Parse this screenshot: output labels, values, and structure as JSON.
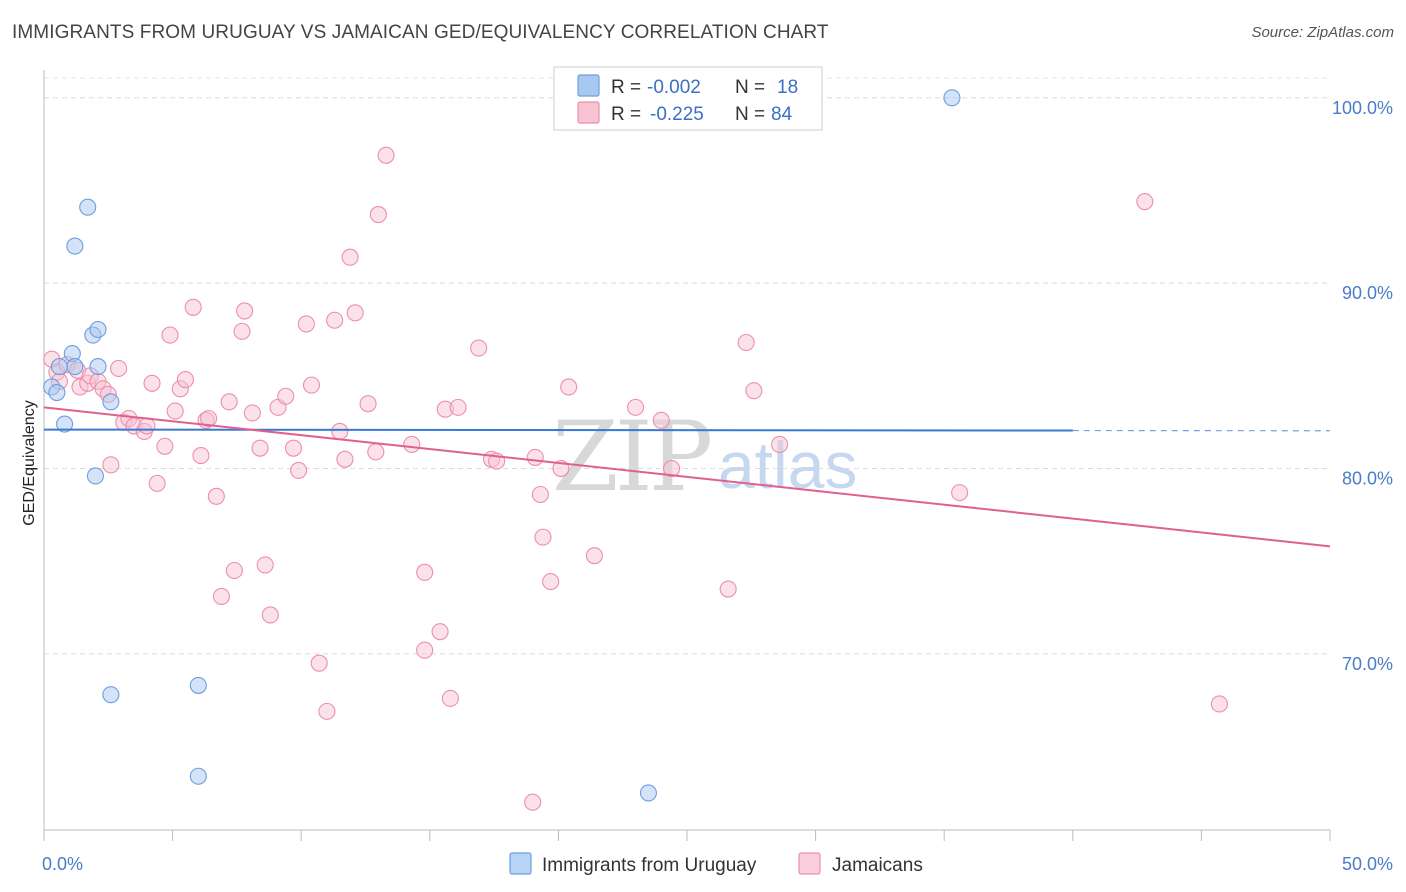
{
  "title": "IMMIGRANTS FROM URUGUAY VS JAMAICAN GED/EQUIVALENCY CORRELATION CHART",
  "source": "Source: ZipAtlas.com",
  "watermark": {
    "zip": "ZIP",
    "atlas": "atlas"
  },
  "legend": {
    "r_label": "R =",
    "n_label": "N =",
    "rows": [
      {
        "r": "-0.002",
        "n": "18",
        "color": "#a9c8ef",
        "stroke": "#6d9ee0"
      },
      {
        "r": "-0.225",
        "n": "84",
        "color": "#f8c3d2",
        "stroke": "#ec8fae"
      }
    ]
  },
  "bottom_legend": [
    {
      "label": "Immigrants from Uruguay",
      "color": "#b7d3f5",
      "stroke": "#6d9ee0"
    },
    {
      "label": "Jamaicans",
      "color": "#f9cdd9",
      "stroke": "#ec8fae"
    }
  ],
  "chart_data": {
    "type": "scatter",
    "title": "IMMIGRANTS FROM URUGUAY VS JAMAICAN GED/EQUIVALENCY CORRELATION CHART",
    "xlabel": "",
    "ylabel": "GED/Equivalency",
    "xlim": [
      0,
      50
    ],
    "ylim": [
      60.5,
      101.5
    ],
    "x_tick_labels": [
      {
        "value": 0,
        "label": "0.0%"
      },
      {
        "value": 50,
        "label": "50.0%"
      }
    ],
    "y_tick_labels": [
      {
        "value": 100,
        "label": "100.0%"
      },
      {
        "value": 90,
        "label": "90.0%"
      },
      {
        "value": 80,
        "label": "80.0%"
      },
      {
        "value": 70,
        "label": "70.0%"
      }
    ],
    "x_minor_ticks": [
      0,
      5,
      10,
      15,
      20,
      25,
      30,
      35,
      40,
      45,
      50
    ],
    "series": [
      {
        "name": "Immigrants from Uruguay",
        "color": "#a9c8ef",
        "stroke": "#6d9ee0",
        "trend": {
          "x": [
            0,
            40
          ],
          "y": [
            82.1,
            82.05
          ],
          "dash_to": 50,
          "color": "#3a78d2"
        },
        "points": [
          [
            0.3,
            84.4
          ],
          [
            0.5,
            84.1
          ],
          [
            0.8,
            82.4
          ],
          [
            1.1,
            86.2
          ],
          [
            1.2,
            85.5
          ],
          [
            1.2,
            92.0
          ],
          [
            1.7,
            94.1
          ],
          [
            1.9,
            87.2
          ],
          [
            2.1,
            85.5
          ],
          [
            2.0,
            79.6
          ],
          [
            2.1,
            87.5
          ],
          [
            2.6,
            83.6
          ],
          [
            2.6,
            67.8
          ],
          [
            6.0,
            68.3
          ],
          [
            6.0,
            63.4
          ],
          [
            35.3,
            100.0
          ],
          [
            23.5,
            62.5
          ],
          [
            0.6,
            85.5
          ]
        ]
      },
      {
        "name": "Jamaicans",
        "color": "#f8c3d2",
        "stroke": "#ec8fae",
        "trend": {
          "x": [
            0,
            50
          ],
          "y": [
            83.3,
            75.8
          ],
          "color": "#e0608e"
        },
        "points": [
          [
            0.3,
            85.9
          ],
          [
            0.5,
            85.2
          ],
          [
            0.6,
            84.7
          ],
          [
            0.9,
            85.6
          ],
          [
            1.3,
            85.3
          ],
          [
            1.4,
            84.4
          ],
          [
            1.7,
            84.6
          ],
          [
            1.8,
            85.0
          ],
          [
            2.1,
            84.7
          ],
          [
            2.3,
            84.3
          ],
          [
            2.5,
            84.0
          ],
          [
            2.6,
            80.2
          ],
          [
            2.9,
            85.4
          ],
          [
            3.1,
            82.5
          ],
          [
            3.3,
            82.7
          ],
          [
            3.5,
            82.3
          ],
          [
            3.9,
            82.0
          ],
          [
            4.0,
            82.3
          ],
          [
            4.2,
            84.6
          ],
          [
            4.4,
            79.2
          ],
          [
            4.7,
            81.2
          ],
          [
            4.9,
            87.2
          ],
          [
            5.1,
            83.1
          ],
          [
            5.3,
            84.3
          ],
          [
            5.5,
            84.8
          ],
          [
            5.8,
            88.7
          ],
          [
            6.1,
            80.7
          ],
          [
            6.3,
            82.6
          ],
          [
            6.4,
            82.7
          ],
          [
            6.7,
            78.5
          ],
          [
            6.9,
            73.1
          ],
          [
            7.2,
            83.6
          ],
          [
            7.4,
            74.5
          ],
          [
            7.7,
            87.4
          ],
          [
            7.8,
            88.5
          ],
          [
            8.1,
            83.0
          ],
          [
            8.4,
            81.1
          ],
          [
            8.6,
            74.8
          ],
          [
            8.8,
            72.1
          ],
          [
            9.1,
            83.3
          ],
          [
            9.4,
            83.9
          ],
          [
            9.7,
            81.1
          ],
          [
            9.9,
            79.9
          ],
          [
            10.2,
            87.8
          ],
          [
            10.4,
            84.5
          ],
          [
            10.7,
            69.5
          ],
          [
            11.0,
            66.9
          ],
          [
            11.3,
            88.0
          ],
          [
            11.5,
            82.0
          ],
          [
            11.7,
            80.5
          ],
          [
            11.9,
            91.4
          ],
          [
            12.1,
            88.4
          ],
          [
            12.6,
            83.5
          ],
          [
            12.9,
            80.9
          ],
          [
            13.0,
            93.7
          ],
          [
            13.3,
            96.9
          ],
          [
            14.3,
            81.3
          ],
          [
            14.8,
            74.4
          ],
          [
            14.8,
            70.2
          ],
          [
            15.4,
            71.2
          ],
          [
            15.6,
            83.2
          ],
          [
            15.8,
            67.6
          ],
          [
            16.1,
            83.3
          ],
          [
            16.9,
            86.5
          ],
          [
            17.4,
            80.5
          ],
          [
            17.6,
            80.4
          ],
          [
            19.1,
            80.6
          ],
          [
            19.3,
            78.6
          ],
          [
            19.4,
            76.3
          ],
          [
            19.7,
            73.9
          ],
          [
            19.0,
            62.0
          ],
          [
            20.1,
            80.0
          ],
          [
            20.4,
            84.4
          ],
          [
            21.4,
            75.3
          ],
          [
            23.0,
            83.3
          ],
          [
            24.0,
            82.6
          ],
          [
            24.4,
            80.0
          ],
          [
            26.6,
            73.5
          ],
          [
            27.3,
            86.8
          ],
          [
            27.6,
            84.2
          ],
          [
            28.6,
            81.3
          ],
          [
            35.6,
            78.7
          ],
          [
            42.8,
            94.4
          ],
          [
            45.7,
            67.3
          ]
        ]
      }
    ]
  }
}
